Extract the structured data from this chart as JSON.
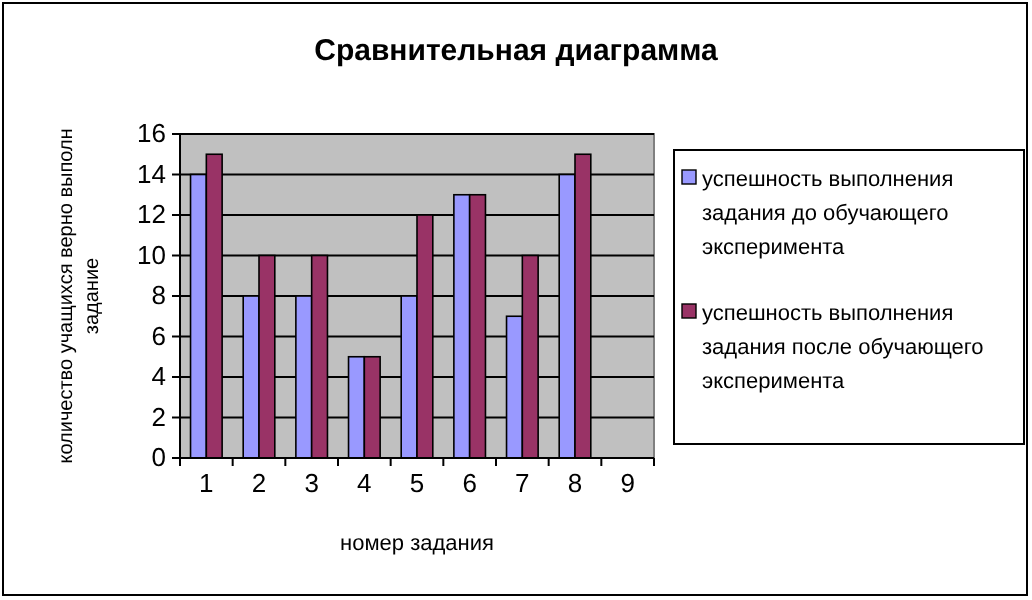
{
  "chart_data": {
    "type": "bar",
    "title": "Сравнительная диаграмма",
    "xlabel": "номер задания",
    "ylabel": "количество учащихся верно выполн задание",
    "categories": [
      "1",
      "2",
      "3",
      "4",
      "5",
      "6",
      "7",
      "8",
      "9"
    ],
    "series": [
      {
        "name": "успешность выполнения задания до обучающего эксперимента",
        "color": "#9999ff",
        "values": [
          14,
          8,
          8,
          5,
          8,
          13,
          7,
          14,
          null
        ]
      },
      {
        "name": "успешность выполнения задания после обучающего эксперимента",
        "color": "#993366",
        "values": [
          15,
          10,
          10,
          5,
          12,
          13,
          10,
          15,
          null
        ]
      }
    ],
    "ylim": [
      0,
      16
    ],
    "yticks": [
      0,
      2,
      4,
      6,
      8,
      10,
      12,
      14,
      16
    ],
    "grid": "y",
    "legend": "right"
  }
}
